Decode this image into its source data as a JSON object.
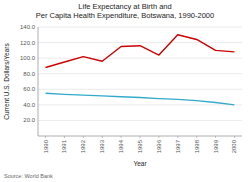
{
  "chart_data": {
    "type": "line",
    "title": "Life Expectancy at Birth and\nPer Capita Health Expenditure, Botswana, 1990-2000",
    "x_label": "Year",
    "y_label": "Current U.S. Dollars/Years",
    "annotations": [
      "Source: World Bank"
    ],
    "x": [
      1990,
      1991,
      1992,
      1993,
      1994,
      1995,
      1996,
      1997,
      1998,
      1999,
      2000
    ],
    "series": [
      {
        "color": "#cc0000",
        "values": [
          88.0,
          95.0,
          102.0,
          96.0,
          115.0,
          116.0,
          104.0,
          130.0,
          124.0,
          110.0,
          108.0
        ]
      },
      {
        "color": "#33aacc",
        "values": [
          55.0,
          53.5,
          52.5,
          51.5,
          50.5,
          49.5,
          48.0,
          47.0,
          45.5,
          43.0,
          40.0
        ]
      }
    ],
    "xlim": [
      1989.6,
      2000.4
    ],
    "xticks": [
      1990,
      1991,
      1992,
      1993,
      1994,
      1995,
      1996,
      1997,
      1998,
      1999,
      2000
    ],
    "ylim": [
      0,
      140
    ],
    "yticks": [
      {
        "value": 20.0,
        "label": "20.0"
      },
      {
        "value": 40.0,
        "label": "40.0"
      },
      {
        "value": 60.0,
        "label": "60.0"
      },
      {
        "value": 80.0,
        "label": "80.0"
      },
      {
        "value": 100.0,
        "label": "100.0"
      },
      {
        "value": 120.0,
        "label": "120.0"
      },
      {
        "value": 140.0,
        "label": "140.0"
      }
    ],
    "grid": true
  }
}
